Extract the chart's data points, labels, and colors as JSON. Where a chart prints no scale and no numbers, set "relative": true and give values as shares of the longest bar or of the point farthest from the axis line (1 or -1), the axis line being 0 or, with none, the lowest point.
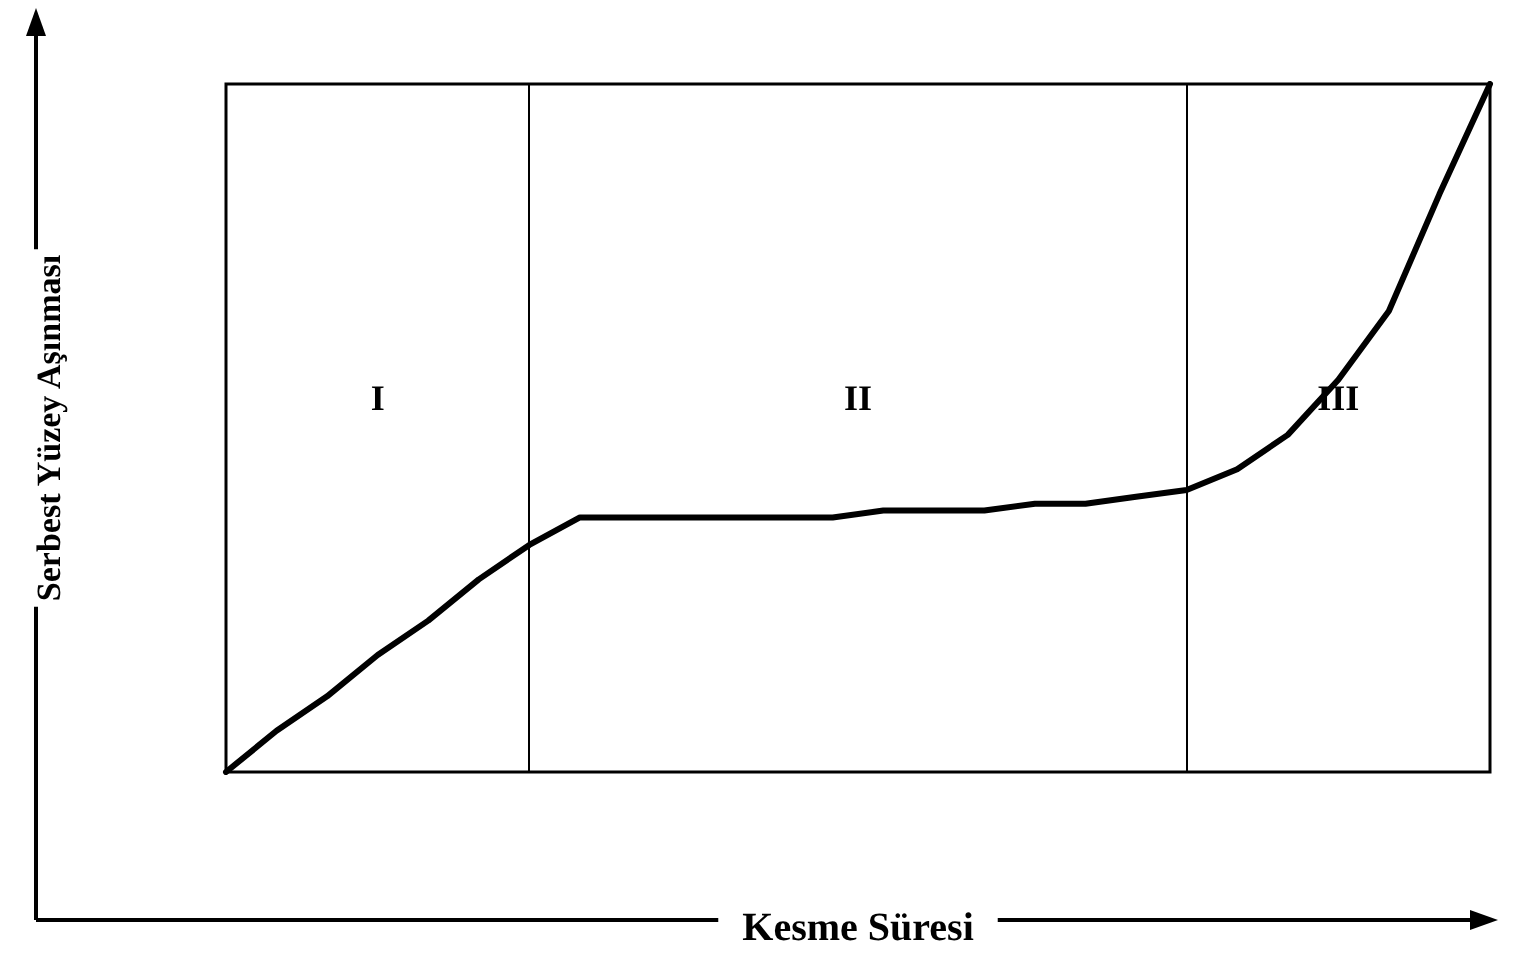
{
  "chart_data": {
    "type": "line",
    "relative": true,
    "xlabel": "Kesme Süresi",
    "ylabel": "Serbest Yüzey Aşınması",
    "categories": [
      null,
      null,
      null,
      null,
      null,
      null,
      null,
      null,
      null,
      null,
      null,
      null,
      null,
      null,
      null,
      null,
      null,
      null,
      null,
      null,
      null,
      null,
      null,
      null,
      null,
      null
    ],
    "series": [
      {
        "color": "#000000",
        "values": [
          0,
          0.06,
          0.11,
          0.17,
          0.22,
          0.28,
          0.33,
          0.37,
          0.37,
          0.37,
          0.37,
          0.37,
          0.37,
          0.38,
          0.38,
          0.38,
          0.39,
          0.39,
          0.4,
          0.41,
          0.44,
          0.49,
          0.57,
          0.67,
          0.84,
          1
        ]
      }
    ],
    "annotations": [
      "I",
      "II",
      "III"
    ],
    "grid": false,
    "marker": "none",
    "line_style": "solid"
  }
}
